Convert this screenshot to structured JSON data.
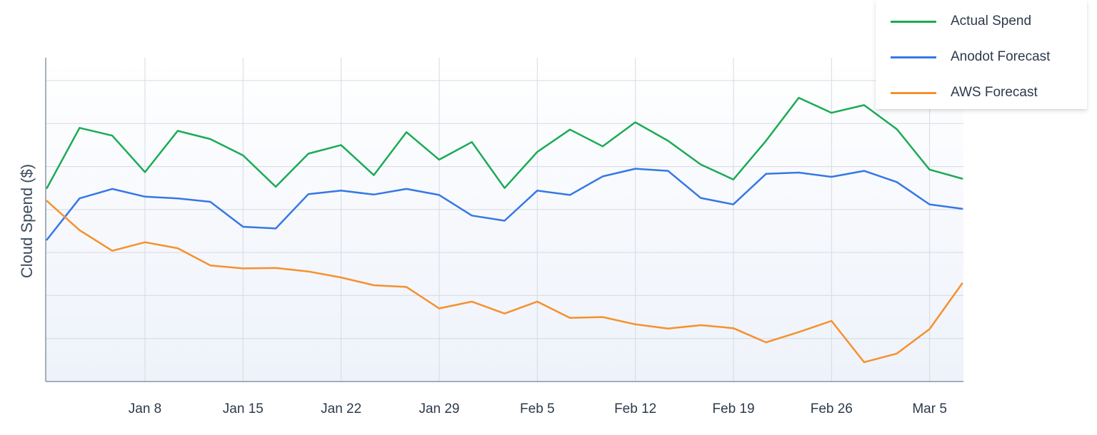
{
  "chart_data": {
    "type": "line",
    "title": "",
    "xlabel": "",
    "ylabel": "Cloud Spend ($)",
    "x_tick_labels": [
      "Jan 8",
      "Jan 15",
      "Jan 22",
      "Jan 29",
      "Feb 5",
      "Feb 12",
      "Feb 19",
      "Feb 26",
      "Mar 5"
    ],
    "x_start_offset_days": -7,
    "x_step_days": 2.333,
    "ylim": [
      0,
      7
    ],
    "y_tick_labels_shown": false,
    "grid": true,
    "legend_position": "top-right",
    "series": [
      {
        "name": "Actual Spend",
        "color": "#1aab55",
        "values": [
          4.5,
          5.9,
          5.72,
          4.87,
          5.83,
          5.64,
          5.26,
          4.53,
          5.3,
          5.5,
          4.8,
          5.8,
          5.16,
          5.57,
          4.5,
          5.34,
          5.86,
          5.47,
          6.03,
          5.6,
          5.05,
          4.7,
          5.6,
          6.6,
          6.25,
          6.43,
          5.87,
          4.93,
          4.72
        ]
      },
      {
        "name": "Anodot Forecast",
        "color": "#3578e5",
        "values": [
          3.3,
          4.26,
          4.48,
          4.3,
          4.26,
          4.18,
          3.6,
          3.56,
          4.36,
          4.44,
          4.35,
          4.48,
          4.34,
          3.86,
          3.74,
          4.44,
          4.34,
          4.77,
          4.95,
          4.9,
          4.27,
          4.12,
          4.83,
          4.86,
          4.76,
          4.9,
          4.64,
          4.12,
          4.02
        ]
      },
      {
        "name": "AWS Forecast",
        "color": "#f5912c",
        "values": [
          4.2,
          3.52,
          3.04,
          3.24,
          3.1,
          2.7,
          2.63,
          2.64,
          2.56,
          2.42,
          2.24,
          2.2,
          1.7,
          1.86,
          1.58,
          1.86,
          1.48,
          1.5,
          1.33,
          1.23,
          1.31,
          1.24,
          0.91,
          1.15,
          1.41,
          0.45,
          0.65,
          1.22,
          2.28
        ]
      }
    ]
  }
}
